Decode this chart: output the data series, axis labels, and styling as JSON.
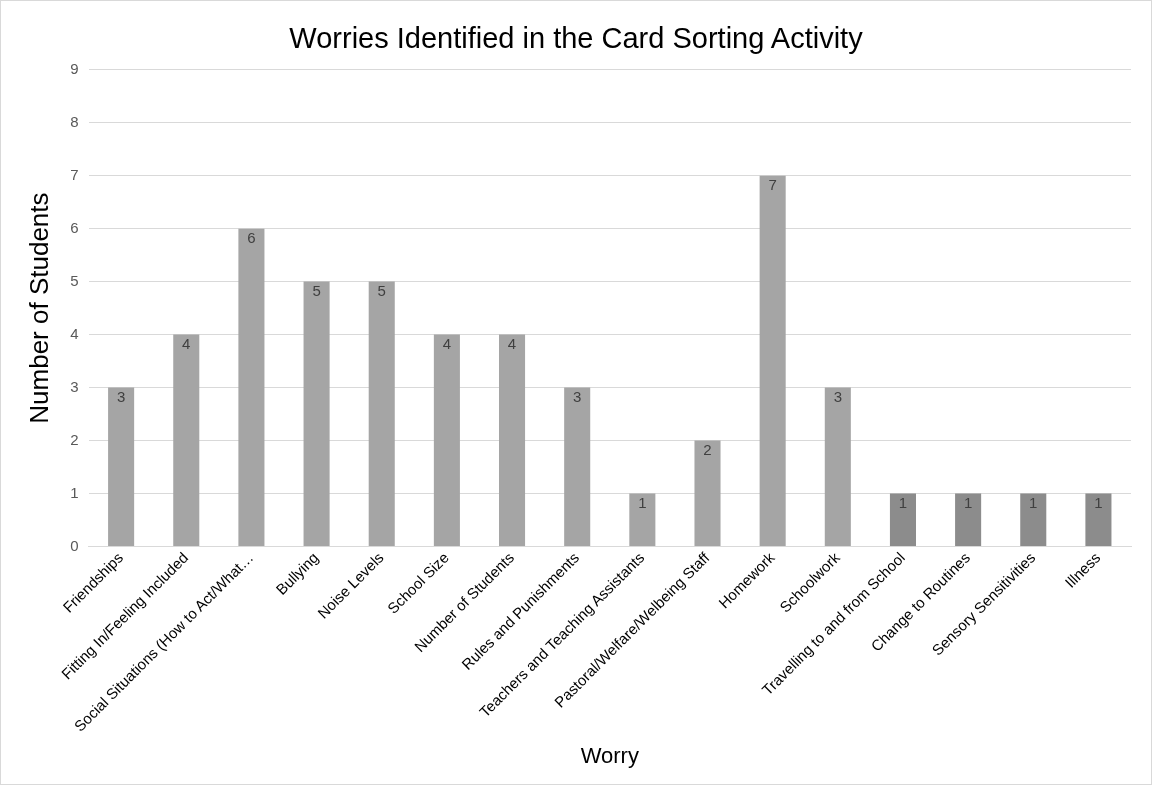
{
  "chart_data": {
    "type": "bar",
    "title": "Worries Identified in the Card Sorting Activity",
    "xlabel": "Worry",
    "ylabel": "Number of Students",
    "categories": [
      "Friendships",
      "Fitting In/Feeling Included",
      "Social Situations (How to Act/What…",
      "Bullying",
      "Noise Levels",
      "School Size",
      "Number of Students",
      "Rules and Punishments",
      "Teachers and Teaching Assistants",
      "Pastoral/Welfare/Welbeing Staff",
      "Homework",
      "Schoolwork",
      "Travelling to and from School",
      "Change to Routines",
      "Sensory Sensitivities",
      "Illness"
    ],
    "values": [
      3,
      4,
      6,
      5,
      5,
      4,
      4,
      3,
      1,
      2,
      7,
      3,
      1,
      1,
      1,
      1
    ],
    "colors": [
      "#a5a5a5",
      "#a5a5a5",
      "#a5a5a5",
      "#a5a5a5",
      "#a5a5a5",
      "#a5a5a5",
      "#a5a5a5",
      "#a5a5a5",
      "#a5a5a5",
      "#a5a5a5",
      "#a5a5a5",
      "#a5a5a5",
      "#8c8c8c",
      "#8c8c8c",
      "#8c8c8c",
      "#8c8c8c"
    ],
    "ylim": [
      0,
      9
    ],
    "yticks": [
      0,
      1,
      2,
      3,
      4,
      5,
      6,
      7,
      8,
      9
    ],
    "grid": "y",
    "data_labels": true,
    "legend": false
  }
}
